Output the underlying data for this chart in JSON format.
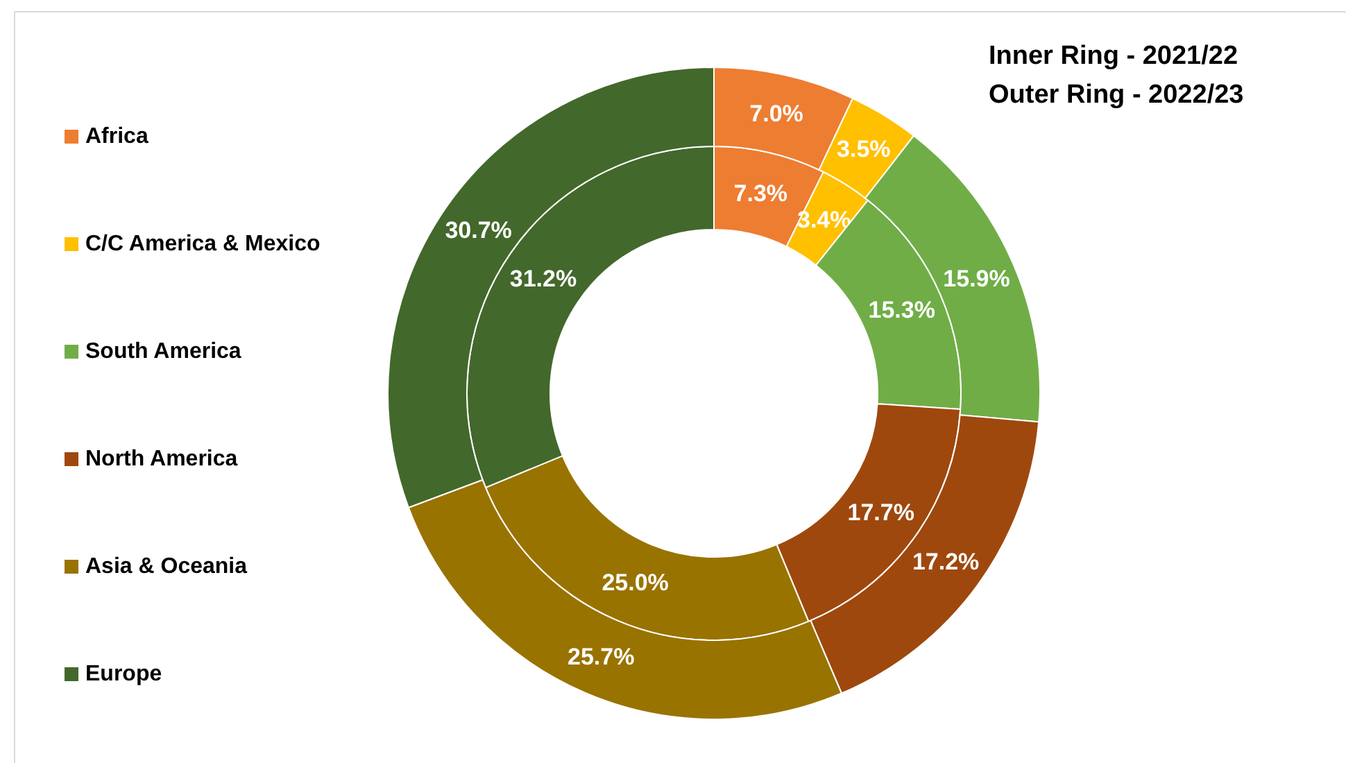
{
  "chart_data": {
    "type": "donut",
    "categories": [
      "Africa",
      "C/C America & Mexico",
      "South America",
      "North America",
      "Asia & Oceania",
      "Europe"
    ],
    "colors": [
      "#ed7d31",
      "#ffc000",
      "#70ad47",
      "#9e480e",
      "#997300",
      "#43682b"
    ],
    "series": [
      {
        "values": [
          7.3,
          3.4,
          15.3,
          17.7,
          25.0,
          31.2
        ],
        "value_labels": [
          "7.3%",
          "3.4%",
          "15.3%",
          "17.7%",
          "25.0%",
          "31.2%"
        ]
      },
      {
        "values": [
          7.0,
          3.5,
          15.9,
          17.2,
          25.7,
          30.7
        ],
        "value_labels": [
          "7.0%",
          "3.5%",
          "15.9%",
          "17.2%",
          "25.7%",
          "30.7%"
        ]
      }
    ],
    "annotations": [
      "Inner Ring - 2021/22",
      "Outer Ring - 2022/23"
    ],
    "legend": "left"
  }
}
